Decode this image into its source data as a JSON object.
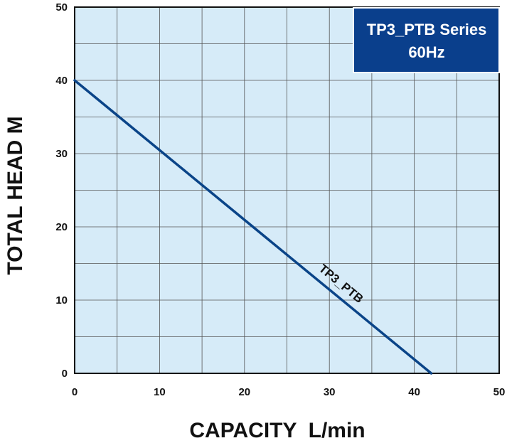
{
  "chart_data": {
    "type": "line",
    "title": "",
    "xlabel": "CAPACITY  L/min",
    "ylabel": "TOTAL HEAD M",
    "xlim": [
      0,
      50
    ],
    "ylim": [
      0,
      50
    ],
    "x_ticks": [
      0,
      10,
      20,
      30,
      40,
      50
    ],
    "y_ticks": [
      0,
      10,
      20,
      30,
      40,
      50
    ],
    "x_minor_step": 5,
    "y_minor_step": 5,
    "grid": true,
    "legend_box": {
      "lines": [
        "TP3_PTB Series",
        "60Hz"
      ],
      "placement": "top-right"
    },
    "series": [
      {
        "name": "TP3_PTB",
        "x": [
          0,
          42
        ],
        "y": [
          40,
          0
        ]
      }
    ],
    "colors": {
      "plot_background": "#d6ebf8",
      "grid": "#555555",
      "series_line": "#0a4488",
      "legend_background": "#0a3f8c",
      "legend_border": "#ffffff"
    }
  }
}
